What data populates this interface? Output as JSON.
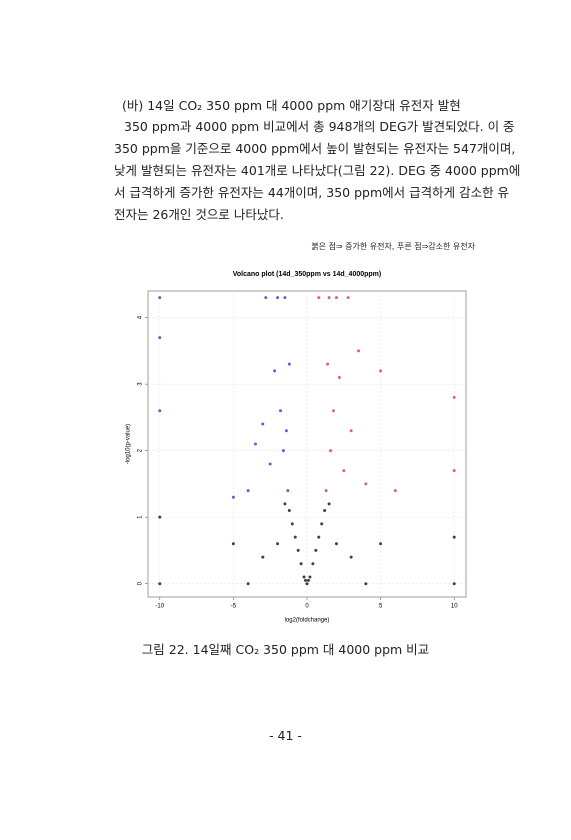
{
  "heading": "(바) 14일 CO₂ 350 ppm 대 4000 ppm 애기장대 유전자 발현",
  "paragraph_lines": [
    "350 ppm과 4000 ppm 비교에서 총 948개의 DEG가 발견되었다. 이 중",
    "350 ppm을 기준으로 4000 ppm에서 높이 발현되는 유전자는 547개이며,",
    "낮게 발현되는 유전자는 401개로 나타났다(그림 22). DEG 중 4000 ppm에",
    "서 급격하게 증가한 유전자는 44개이며, 350 ppm에서 급격하게 감소한 유",
    "전자는 26개인 것으로 나타났다."
  ],
  "figure_note": "붉은 점⇒ 증가한 유전자, 푸른 점⇒감소한 유전자",
  "chart_data": {
    "type": "scatter",
    "title": "Volcano plot (14d_350ppm vs 14d_4000ppm)",
    "x_label": "log2(foldchange)",
    "y_label": "-log10(p-value)",
    "xlim": [
      -10.8,
      10.8
    ],
    "ylim": [
      -0.2,
      4.4
    ],
    "xticks": [
      -10,
      -5,
      0,
      5,
      10
    ],
    "yticks": [
      0,
      1,
      2,
      3,
      4
    ],
    "grid": true,
    "series": [
      {
        "color": "#000000",
        "x": [
          0,
          0.2,
          -0.2,
          0.4,
          -0.4,
          0.6,
          -0.6,
          0.8,
          -0.8,
          1.0,
          -1.0,
          1.2,
          -1.2,
          -2,
          2,
          -3,
          3,
          -5,
          5,
          -10,
          10,
          -10,
          10,
          0.1,
          -0.1,
          1.5,
          -1.5,
          -4,
          4
        ],
        "y": [
          0,
          0.1,
          0.1,
          0.3,
          0.3,
          0.5,
          0.5,
          0.7,
          0.7,
          0.9,
          0.9,
          1.1,
          1.1,
          0.6,
          0.6,
          0.4,
          0.4,
          0.6,
          0.6,
          0,
          0,
          1,
          0.7,
          0.05,
          0.05,
          1.2,
          1.2,
          0,
          0
        ]
      },
      {
        "color": "#d03030",
        "x": [
          1.3,
          1.6,
          1.8,
          2.2,
          2.5,
          3,
          3.5,
          4,
          1.5,
          2,
          2.8,
          5,
          6,
          10,
          10,
          0.8,
          1.4
        ],
        "y": [
          1.4,
          2,
          2.6,
          3.1,
          1.7,
          2.3,
          3.5,
          1.5,
          4.3,
          4.3,
          4.3,
          3.2,
          1.4,
          1.7,
          2.8,
          4.3,
          3.3
        ]
      },
      {
        "color": "#2a2ad0",
        "x": [
          -1.3,
          -1.6,
          -1.8,
          -2.2,
          -2.5,
          -3,
          -3.5,
          -4,
          -1.5,
          -2,
          -2.8,
          -5,
          -10,
          -10,
          -10,
          -1.2,
          -1.4
        ],
        "y": [
          1.4,
          2,
          2.6,
          3.2,
          1.8,
          2.4,
          2.1,
          1.4,
          4.3,
          4.3,
          4.3,
          1.3,
          4.3,
          3.7,
          2.6,
          3.3,
          2.3
        ]
      }
    ]
  },
  "figure_caption": "그림 22. 14일째 CO₂ 350 ppm 대 4000 ppm 비교",
  "page_number": "- 41 -"
}
